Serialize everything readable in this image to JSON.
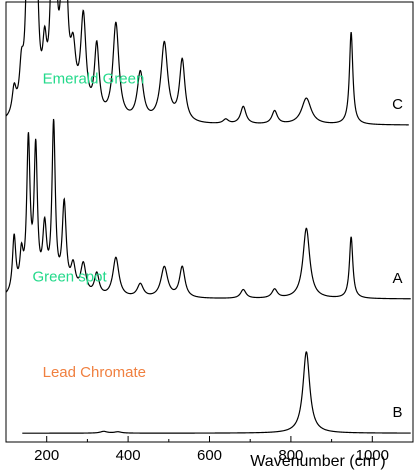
{
  "chart_data": {
    "type": "line",
    "title": "",
    "xlabel": "Wavenumber (cm )",
    "ylabel": "",
    "xlim": [
      100,
      1100
    ],
    "xticks": [
      200,
      400,
      600,
      800,
      1000
    ],
    "xtick_labels": [
      "200",
      "400",
      "600",
      "800",
      "1000"
    ],
    "grid": false,
    "series": [
      {
        "letter": "C",
        "annotation": "Emerald Green",
        "annotation_color": "#22d98a",
        "baseline": 0.72,
        "peaks": [
          {
            "x": 120,
            "h": 0.06,
            "w": 6
          },
          {
            "x": 138,
            "h": 0.09,
            "w": 6
          },
          {
            "x": 155,
            "h": 0.5,
            "w": 6
          },
          {
            "x": 173,
            "h": 0.45,
            "w": 6
          },
          {
            "x": 195,
            "h": 0.12,
            "w": 6
          },
          {
            "x": 217,
            "h": 0.66,
            "w": 6
          },
          {
            "x": 243,
            "h": 0.54,
            "w": 7
          },
          {
            "x": 265,
            "h": 0.12,
            "w": 8
          },
          {
            "x": 290,
            "h": 0.22,
            "w": 8
          },
          {
            "x": 323,
            "h": 0.16,
            "w": 7
          },
          {
            "x": 370,
            "h": 0.22,
            "w": 9
          },
          {
            "x": 430,
            "h": 0.11,
            "w": 9
          },
          {
            "x": 489,
            "h": 0.18,
            "w": 10
          },
          {
            "x": 533,
            "h": 0.14,
            "w": 8
          },
          {
            "x": 640,
            "h": 0.01,
            "w": 8
          },
          {
            "x": 683,
            "h": 0.04,
            "w": 8
          },
          {
            "x": 760,
            "h": 0.03,
            "w": 8
          },
          {
            "x": 838,
            "h": 0.06,
            "w": 14
          },
          {
            "x": 948,
            "h": 0.21,
            "w": 5
          }
        ]
      },
      {
        "letter": "A",
        "annotation": "Green spot",
        "annotation_color": "#22d98a",
        "baseline": 0.325,
        "peaks": [
          {
            "x": 120,
            "h": 0.13,
            "w": 5
          },
          {
            "x": 138,
            "h": 0.08,
            "w": 5
          },
          {
            "x": 155,
            "h": 0.34,
            "w": 5
          },
          {
            "x": 173,
            "h": 0.32,
            "w": 5
          },
          {
            "x": 195,
            "h": 0.14,
            "w": 6
          },
          {
            "x": 217,
            "h": 0.38,
            "w": 5
          },
          {
            "x": 243,
            "h": 0.2,
            "w": 6
          },
          {
            "x": 265,
            "h": 0.06,
            "w": 7
          },
          {
            "x": 290,
            "h": 0.07,
            "w": 8
          },
          {
            "x": 323,
            "h": 0.05,
            "w": 7
          },
          {
            "x": 370,
            "h": 0.09,
            "w": 9
          },
          {
            "x": 430,
            "h": 0.03,
            "w": 9
          },
          {
            "x": 489,
            "h": 0.07,
            "w": 10
          },
          {
            "x": 533,
            "h": 0.07,
            "w": 8
          },
          {
            "x": 683,
            "h": 0.02,
            "w": 8
          },
          {
            "x": 760,
            "h": 0.02,
            "w": 8
          },
          {
            "x": 838,
            "h": 0.16,
            "w": 10
          },
          {
            "x": 948,
            "h": 0.14,
            "w": 5
          }
        ]
      },
      {
        "letter": "B",
        "annotation": "Lead Chromate",
        "annotation_color": "#f08040",
        "baseline": 0.02,
        "peaks": [
          {
            "x": 340,
            "h": 0.004,
            "w": 10
          },
          {
            "x": 375,
            "h": 0.003,
            "w": 10
          },
          {
            "x": 838,
            "h": 0.185,
            "w": 10
          }
        ]
      }
    ]
  }
}
